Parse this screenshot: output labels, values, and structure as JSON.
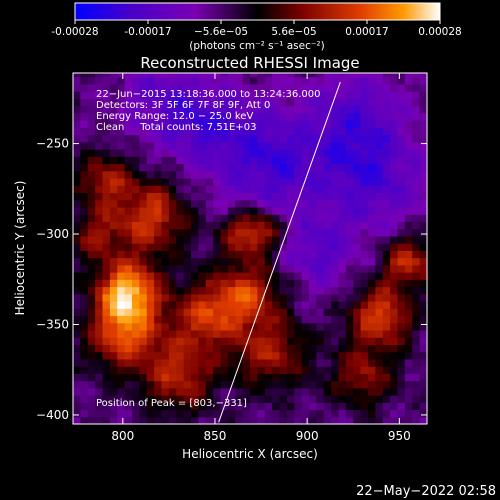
{
  "chart_data": {
    "type": "heatmap",
    "title": "Reconstructed RHESSI Image",
    "xlabel": "Heliocentric X (arcsec)",
    "ylabel": "Heliocentric Y (arcsec)",
    "colorbar": {
      "ticks": [
        "-0.00028",
        "-0.00017",
        "−5.6e−05",
        "5.6e−05",
        "0.00017",
        "0.00028"
      ],
      "unit_label": "(photons cm⁻² s⁻¹ asec⁻²)",
      "min": -0.00028,
      "max": 0.00028,
      "colors": [
        "#0000ff",
        "#4b00c8",
        "#7a00b4",
        "#000000",
        "#7a0000",
        "#e03c00",
        "#ff9a00",
        "#ffffff"
      ]
    },
    "xlim": [
      773,
      965
    ],
    "ylim": [
      -405,
      -211
    ],
    "xticks": [
      800,
      850,
      900,
      950
    ],
    "yticks": [
      -250,
      -300,
      -350,
      -400
    ],
    "limb": [
      [
        852,
        -404
      ],
      [
        918,
        -216
      ]
    ],
    "sources": [
      {
        "x": 803,
        "y": -331,
        "a": 1.0,
        "s": 12
      },
      {
        "x": 815,
        "y": -290,
        "a": 0.7,
        "s": 14
      },
      {
        "x": 800,
        "y": -355,
        "a": 0.75,
        "s": 14
      },
      {
        "x": 790,
        "y": -270,
        "a": 0.55,
        "s": 10
      },
      {
        "x": 830,
        "y": -378,
        "a": 0.6,
        "s": 14
      },
      {
        "x": 845,
        "y": -345,
        "a": 0.65,
        "s": 13
      },
      {
        "x": 868,
        "y": -332,
        "a": 0.65,
        "s": 13
      },
      {
        "x": 880,
        "y": -365,
        "a": 0.55,
        "s": 14
      },
      {
        "x": 875,
        "y": -298,
        "a": 0.6,
        "s": 9
      },
      {
        "x": 940,
        "y": -345,
        "a": 0.75,
        "s": 12
      },
      {
        "x": 955,
        "y": -315,
        "a": 0.65,
        "s": 10
      },
      {
        "x": 930,
        "y": -378,
        "a": 0.5,
        "s": 12
      },
      {
        "x": 862,
        "y": -300,
        "a": 0.4,
        "s": 8
      },
      {
        "x": 785,
        "y": -300,
        "a": 0.45,
        "s": 10
      }
    ],
    "negatives": [
      {
        "x": 880,
        "y": -260,
        "a": -0.5,
        "s": 20
      },
      {
        "x": 935,
        "y": -268,
        "a": -0.45,
        "s": 20
      },
      {
        "x": 845,
        "y": -240,
        "a": -0.4,
        "s": 16
      },
      {
        "x": 905,
        "y": -310,
        "a": -0.35,
        "s": 15
      },
      {
        "x": 925,
        "y": -235,
        "a": -0.35,
        "s": 18
      },
      {
        "x": 820,
        "y": -225,
        "a": -0.3,
        "s": 15
      }
    ]
  },
  "plot": {
    "title": "Reconstructed RHESSI Image",
    "info_lines": [
      "22−Jun−2015 13:18:36.000 to 13:24:36.000",
      "Detectors: 3F 5F 6F 7F 8F 9F, Att 0",
      "Energy Range: 12.0 − 25.0 keV",
      "Clean     Total counts: 7.51E+03"
    ],
    "peak_label": "Position of Peak = [803,−331]",
    "x_tick_labels": [
      "800",
      "850",
      "900",
      "950"
    ],
    "y_tick_labels": [
      "−250",
      "−300",
      "−350",
      "−400"
    ]
  },
  "footer": {
    "timestamp": "22−May−2022 02:58"
  }
}
